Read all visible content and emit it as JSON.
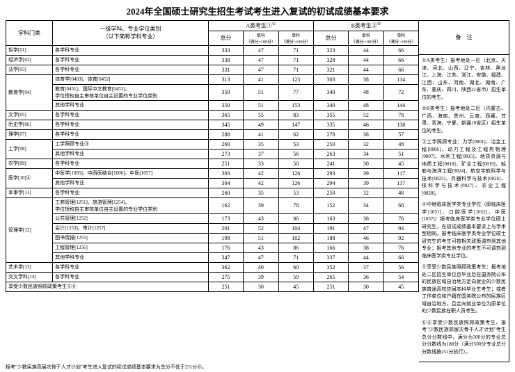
{
  "title": "2024年全国硕士研究生招生考试考生进入复试的初试成绩基本要求",
  "h": {
    "cat": "学科门类",
    "major": "一级学科、专业学位类别\n（以下简称学科专业）",
    "a": "A类考生①",
    "b": "B类考生②",
    "total": "总分",
    "s1": "单科\n（满分=100分）",
    "s2": "单科\n（满分>100分）",
    "notes": "备　注"
  },
  "rows": [
    {
      "c": "哲学[01]",
      "m": "各学科专业",
      "a": [
        333,
        47,
        71
      ],
      "b": [
        323,
        44,
        66
      ]
    },
    {
      "c": "经济学[02]",
      "m": "各学科专业",
      "a": [
        338,
        47,
        71
      ],
      "b": [
        328,
        44,
        66
      ]
    },
    {
      "c": "法学[03]",
      "m": "各学科专业",
      "a": [
        331,
        47,
        71
      ],
      "b": [
        321,
        44,
        66
      ]
    },
    {
      "c": "教育学[04]",
      "rs": 3,
      "m": "体育学[0403]、体育[0452]",
      "a": [
        313,
        41,
        123
      ],
      "b": [
        303,
        38,
        114
      ]
    },
    {
      "m": "教育[0451]、国际中文教育[0453]、\n学位授权自主审核单位自主设置的专业学位类别",
      "a": [
        350,
        51,
        77
      ],
      "b": [
        340,
        48,
        72
      ]
    },
    {
      "m": "其他学科专业",
      "a": [
        350,
        51,
        153
      ],
      "b": [
        340,
        48,
        144
      ]
    },
    {
      "c": "文学[05]",
      "m": "各学科专业",
      "a": [
        365,
        55,
        83
      ],
      "b": [
        355,
        52,
        78
      ]
    },
    {
      "c": "历史学[06]",
      "m": "各学科专业",
      "a": [
        345,
        49,
        147
      ],
      "b": [
        335,
        46,
        138
      ]
    },
    {
      "c": "理学[07]",
      "m": "各学科专业",
      "a": [
        288,
        41,
        62
      ],
      "b": [
        278,
        38,
        57
      ]
    },
    {
      "c": "工学[08]",
      "rs": 2,
      "m": "工学照顾专业③",
      "a": [
        260,
        35,
        53
      ],
      "b": [
        250,
        32,
        48
      ]
    },
    {
      "m": "其他学科专业",
      "a": [
        273,
        37,
        56
      ],
      "b": [
        263,
        34,
        51
      ]
    },
    {
      "c": "农学[09]",
      "m": "各学科专业",
      "a": [
        251,
        33,
        50
      ],
      "b": [
        241,
        30,
        45
      ]
    },
    {
      "c": "医学[10]④",
      "rs": 2,
      "m": "中医学[1005]、中西医结合[1006]、中医[1057]",
      "a": [
        303,
        42,
        126
      ],
      "b": [
        293,
        39,
        117
      ]
    },
    {
      "m": "其他学科专业",
      "a": [
        304,
        42,
        126
      ],
      "b": [
        294,
        39,
        117
      ]
    },
    {
      "c": "军事学[11]",
      "m": "各学科专业",
      "a": [
        260,
        35,
        53
      ],
      "b": [
        250,
        32,
        48
      ]
    },
    {
      "c": "管理学[12]",
      "rs": 6,
      "m": "工商管理[1251]、旅游管理[1254]、\n学位授权自主审核单位自主设置的专业学位类别",
      "a": [
        162,
        39,
        78
      ],
      "b": [
        152,
        34,
        68
      ]
    },
    {
      "m": "公共管理[1252]",
      "a": [
        173,
        43,
        86
      ],
      "b": [
        163,
        38,
        76
      ]
    },
    {
      "m": "会计[1253]、审计[1257]",
      "a": [
        201,
        52,
        104
      ],
      "b": [
        191,
        47,
        94
      ]
    },
    {
      "m": "图书情报[1255]",
      "a": [
        198,
        51,
        102
      ],
      "b": [
        188,
        46,
        92
      ]
    },
    {
      "m": "工程管理[1256]",
      "a": [
        176,
        43,
        86
      ],
      "b": [
        166,
        38,
        76
      ]
    },
    {
      "m": "其他学科专业",
      "a": [
        347,
        47,
        71
      ],
      "b": [
        337,
        44,
        66
      ]
    },
    {
      "c": "艺术学[13]",
      "m": "各学科专业",
      "a": [
        362,
        40,
        60
      ],
      "b": [
        352,
        37,
        56
      ]
    },
    {
      "c": "交叉学科[14]",
      "m": "各学科专业",
      "a": [
        275,
        39,
        59
      ],
      "b": [
        265,
        36,
        54
      ]
    },
    {
      "c": "享受少数民族照顾政策考生⑤⑥",
      "cs": 2,
      "a": [
        251,
        30,
        45
      ],
      "b": [
        251,
        30,
        45
      ]
    }
  ],
  "footer": "报考\"少数民族高层次骨干人才计划\"考生进入复试的初试成绩基本要求为总分不低于251分⑥。",
  "notes": [
    "①A类考生：报考地处一区（北京、天津、河北、山西、辽宁、吉林、黑龙江、上海、江苏、浙江、安徽、福建、江西、山东、河南、湖北、湖南、广东、重庆、四川、陕西21省市）招生单位的考生。",
    "②B类考生：报考地处二区（内蒙古、广西、海南、贵州、云南、西藏、甘肃、青海、宁夏、新疆10省区）招生单位的考生。",
    "③工学照顾专业：力学[0801]、冶金工程[0806]、动力工程及工程热物理[0807]、水利工程[0815]、地质资源与地质工程[0818]、矿业工程[0819]、船舶与海洋工程[0824]、航空宇航科学与技术[0825]、兵器科学与技术[0826]、核科学与技术[0827]、农业工程[0828]。",
    "④中继临床医学类专业学位（即临床医学[1051]、口腔医学[1052]、中医[1057]）报考临床医学类专业学位硕士研究生，在初试成绩基本要求上与学术型相同。报考临床医学类专业学位硕士研究生的考生可按相关政策调剂到其他专业；报考其他专业的考生不可调剂到临床医学类专业学位。",
    "⑤享受少数民族照顾政策考生：报考地处二区招生单位且毕业后在国务院公布的民族区域自治地方定向就业的少数民族普通高校应届本科毕业生考生；或者工作单位和户籍在国务院公布的民族区域自治地方，且定向就业单位为原单位的少数民族在职人员考生。",
    "⑥⑥享受少数民族照顾政策考生、报考\"少数民族高层次骨干人才计划\"考生总分分数线中，满分为300分的专业总分分数线为188分（满分500分专业总分分数线按251分执行）。"
  ],
  "watermark": "搜狐号@天树成长营"
}
